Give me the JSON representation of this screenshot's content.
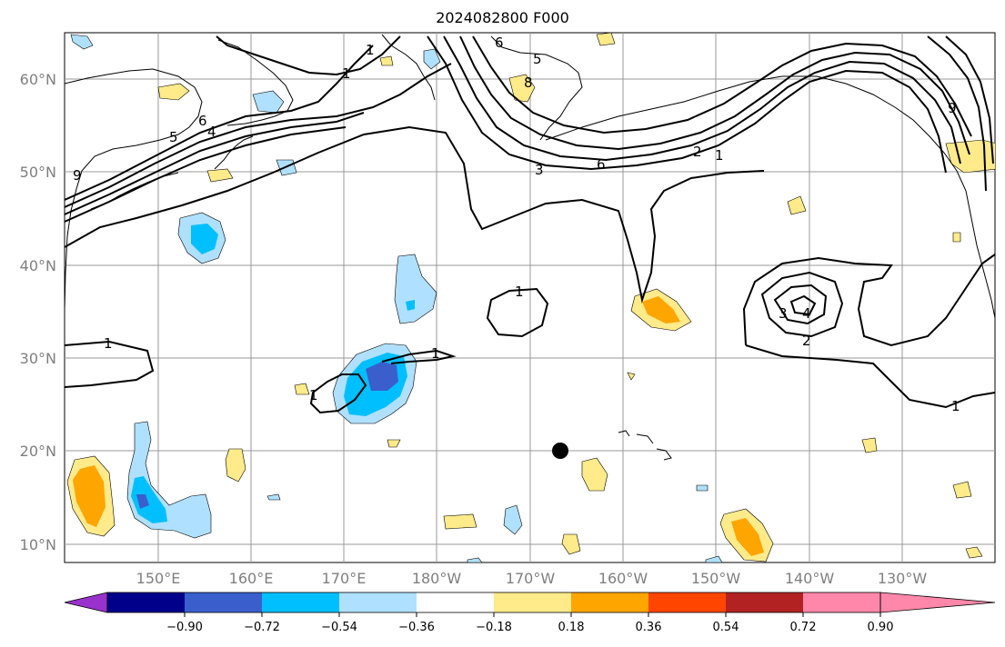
{
  "title": "2024082800 F000",
  "map": {
    "lat_labels": [
      "60°N",
      "50°N",
      "40°N",
      "30°N",
      "20°N",
      "10°N"
    ],
    "lon_labels": [
      "150°E",
      "160°E",
      "170°E",
      "180°W",
      "170°W",
      "160°W",
      "150°W",
      "140°W",
      "130°W"
    ],
    "gridlines": true,
    "marker_point": {
      "lon": "166.5°W",
      "lat": "20°N"
    }
  },
  "contour_labels": [
    "1",
    "1",
    "1",
    "1",
    "1",
    "1",
    "1",
    "1",
    "2",
    "2",
    "3",
    "3",
    "4",
    "4",
    "5",
    "5",
    "6",
    "6",
    "6",
    "8",
    "9",
    "9"
  ],
  "colorbar": {
    "ticks": [
      "−0.90",
      "−0.72",
      "−0.54",
      "−0.36",
      "−0.18",
      "0.18",
      "0.36",
      "0.54",
      "0.72",
      "0.90"
    ],
    "colors": [
      "#9932cc",
      "#00008b",
      "#3a5fcd",
      "#00bfff",
      "#b0e0ff",
      "#ffffff",
      "#ffeb8a",
      "#ffa500",
      "#ff4500",
      "#b22222",
      "#ff88aa"
    ]
  }
}
